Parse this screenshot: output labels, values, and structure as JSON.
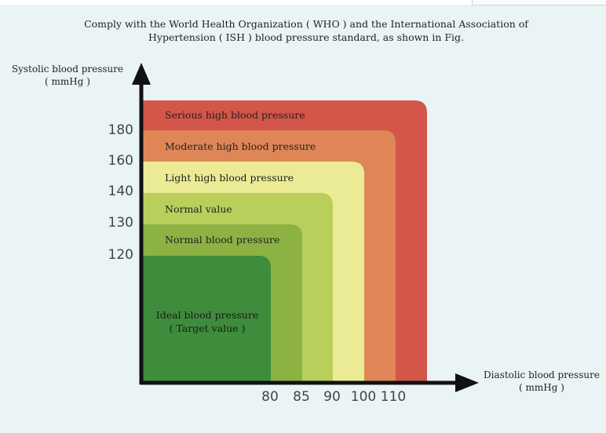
{
  "title_line1": "Comply with the World Health Organization ( WHO ) and the International Association of",
  "title_line2": "Hypertension ( ISH ) blood pressure standard, as shown in Fig.",
  "chart_data": {
    "type": "area",
    "ylabel_line1": "Systolic blood pressure",
    "ylabel_line2": "( mmHg )",
    "xlabel_line1": "Diastolic blood pressure",
    "xlabel_line2": "( mmHg )",
    "y_ticks": [
      "180",
      "160",
      "140",
      "130",
      "120"
    ],
    "x_ticks": [
      "80",
      "85",
      "90",
      "100",
      "110"
    ],
    "bands": [
      {
        "name": "Serious high blood pressure",
        "systolic_above": 180,
        "diastolic_above": 110,
        "color": "#d4554a"
      },
      {
        "name": "Moderate high blood pressure",
        "systolic_max": 180,
        "diastolic_max": 110,
        "color": "#df8656"
      },
      {
        "name": "Light high blood pressure",
        "systolic_max": 160,
        "diastolic_max": 100,
        "color": "#eaeb94"
      },
      {
        "name": "Normal value",
        "systolic_max": 140,
        "diastolic_max": 90,
        "color": "#b8cf5c"
      },
      {
        "name": "Normal blood pressure",
        "systolic_max": 130,
        "diastolic_max": 85,
        "color": "#8cb243"
      },
      {
        "name": "Ideal blood pressure",
        "name_line2": "( Target value )",
        "systolic_max": 120,
        "diastolic_max": 80,
        "color": "#3f8c3c"
      }
    ]
  }
}
